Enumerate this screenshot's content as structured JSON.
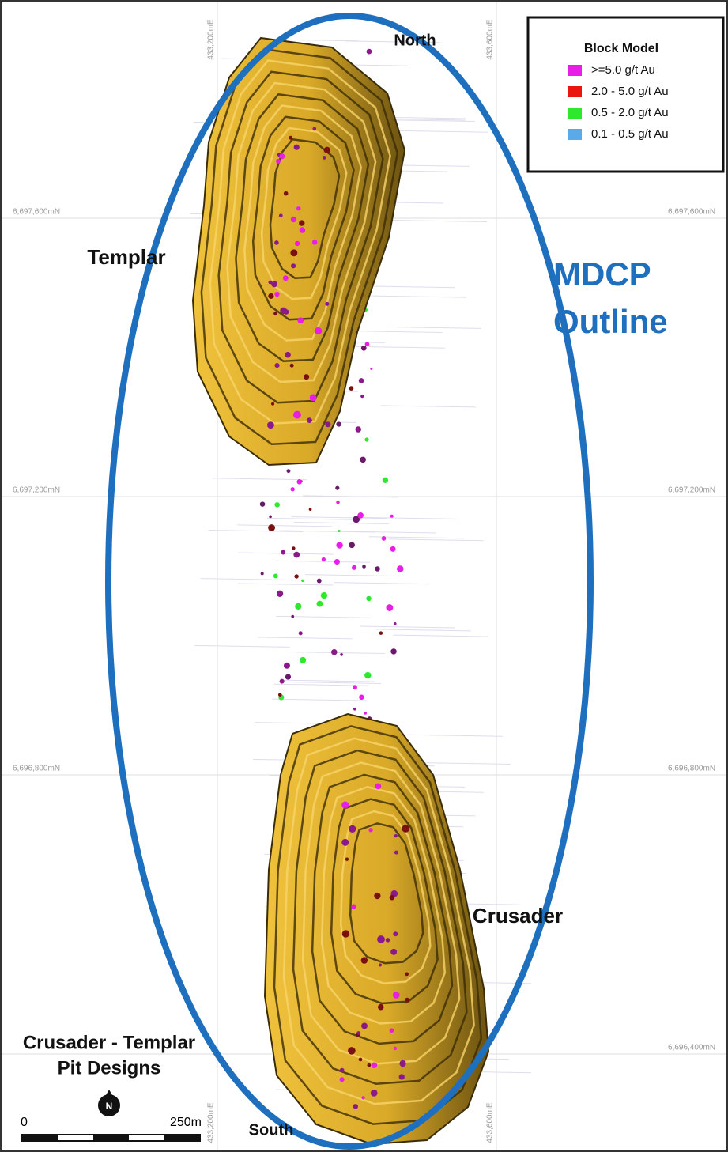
{
  "map": {
    "north_label": "North",
    "south_label": "South",
    "pits": [
      {
        "label": "Templar"
      },
      {
        "label": "Crusader"
      }
    ],
    "outline": {
      "lines": [
        "MDCP",
        "Outline"
      ],
      "color": "#1f6fbf"
    },
    "legend": {
      "title": "Block Model",
      "items": [
        {
          "label": ">=5.0 g/t Au",
          "color": "#e81ee8"
        },
        {
          "label": "2.0 - 5.0 g/t Au",
          "color": "#e8160f"
        },
        {
          "label": "0.5 - 2.0 g/t Au",
          "color": "#2ee82e"
        },
        {
          "label": "0.1 - 0.5 g/t Au",
          "color": "#5aa9e8"
        }
      ]
    },
    "grid": {
      "eastings": [
        "433,200mE",
        "433,600mE"
      ],
      "northings": [
        "6,697,600mN",
        "6,697,200mN",
        "6,696,800mN",
        "6,696,400mN"
      ]
    },
    "caption": [
      "Crusader - Templar",
      "Pit Designs"
    ],
    "scale_bar": {
      "start": "0",
      "end": "250m"
    },
    "north_arrow": "N"
  }
}
